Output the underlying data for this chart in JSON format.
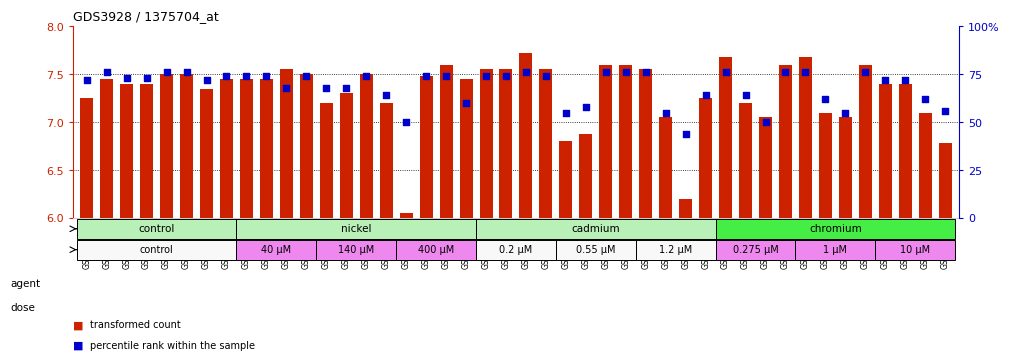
{
  "title": "GDS3928 / 1375704_at",
  "samples": [
    "GSM782280",
    "GSM782281",
    "GSM782291",
    "GSM782292",
    "GSM782302",
    "GSM782303",
    "GSM782313",
    "GSM782314",
    "GSM782282",
    "GSM782293",
    "GSM782304",
    "GSM782315",
    "GSM782283",
    "GSM782294",
    "GSM782305",
    "GSM782316",
    "GSM782284",
    "GSM782295",
    "GSM782306",
    "GSM782317",
    "GSM782288",
    "GSM782299",
    "GSM782310",
    "GSM782321",
    "GSM782289",
    "GSM782300",
    "GSM782311",
    "GSM782322",
    "GSM782290",
    "GSM782301",
    "GSM782312",
    "GSM782323",
    "GSM782285",
    "GSM782296",
    "GSM782307",
    "GSM782318",
    "GSM782286",
    "GSM782297",
    "GSM782308",
    "GSM782319",
    "GSM782287",
    "GSM782298",
    "GSM782309",
    "GSM782320"
  ],
  "bar_values": [
    7.25,
    7.45,
    7.4,
    7.4,
    7.5,
    7.5,
    7.35,
    7.45,
    7.45,
    7.45,
    7.55,
    7.5,
    7.2,
    7.3,
    7.5,
    7.2,
    6.05,
    7.48,
    7.6,
    7.45,
    7.55,
    7.55,
    7.72,
    7.55,
    6.8,
    6.88,
    7.6,
    7.6,
    7.55,
    7.05,
    6.2,
    7.25,
    7.68,
    7.2,
    7.05,
    7.6,
    7.68,
    7.1,
    7.05,
    7.6,
    7.4,
    7.4,
    7.1,
    6.78
  ],
  "percentile_values": [
    72,
    76,
    73,
    73,
    76,
    76,
    72,
    74,
    74,
    74,
    68,
    74,
    68,
    68,
    74,
    64,
    50,
    74,
    74,
    60,
    74,
    74,
    76,
    74,
    55,
    58,
    76,
    76,
    76,
    55,
    44,
    64,
    76,
    64,
    50,
    76,
    76,
    62,
    55,
    76,
    72,
    72,
    62,
    56
  ],
  "ylim_left": [
    6.0,
    8.0
  ],
  "ylim_right": [
    0,
    100
  ],
  "yticks_left": [
    6.0,
    6.5,
    7.0,
    7.5,
    8.0
  ],
  "yticks_right": [
    0,
    25,
    50,
    75,
    100
  ],
  "bar_color": "#cc2200",
  "dot_color": "#0000cc",
  "agent_defs": [
    {
      "label": "control",
      "start": 0,
      "end": 8,
      "color": "#b8f0b8"
    },
    {
      "label": "nickel",
      "start": 8,
      "end": 20,
      "color": "#b8f0b8"
    },
    {
      "label": "cadmium",
      "start": 20,
      "end": 32,
      "color": "#b8f0b8"
    },
    {
      "label": "chromium",
      "start": 32,
      "end": 44,
      "color": "#44ee44"
    }
  ],
  "dose_defs": [
    {
      "label": "control",
      "start": 0,
      "end": 8,
      "color": "#f8f8f8"
    },
    {
      "label": "40 μM",
      "start": 8,
      "end": 12,
      "color": "#ee88ee"
    },
    {
      "label": "140 μM",
      "start": 12,
      "end": 16,
      "color": "#ee88ee"
    },
    {
      "label": "400 μM",
      "start": 16,
      "end": 20,
      "color": "#ee88ee"
    },
    {
      "label": "0.2 μM",
      "start": 20,
      "end": 24,
      "color": "#f8f8f8"
    },
    {
      "label": "0.55 μM",
      "start": 24,
      "end": 28,
      "color": "#f8f8f8"
    },
    {
      "label": "1.2 μM",
      "start": 28,
      "end": 32,
      "color": "#f8f8f8"
    },
    {
      "label": "0.275 μM",
      "start": 32,
      "end": 36,
      "color": "#ee88ee"
    },
    {
      "label": "1 μM",
      "start": 36,
      "end": 40,
      "color": "#ee88ee"
    },
    {
      "label": "10 μM",
      "start": 40,
      "end": 44,
      "color": "#ee88ee"
    }
  ]
}
